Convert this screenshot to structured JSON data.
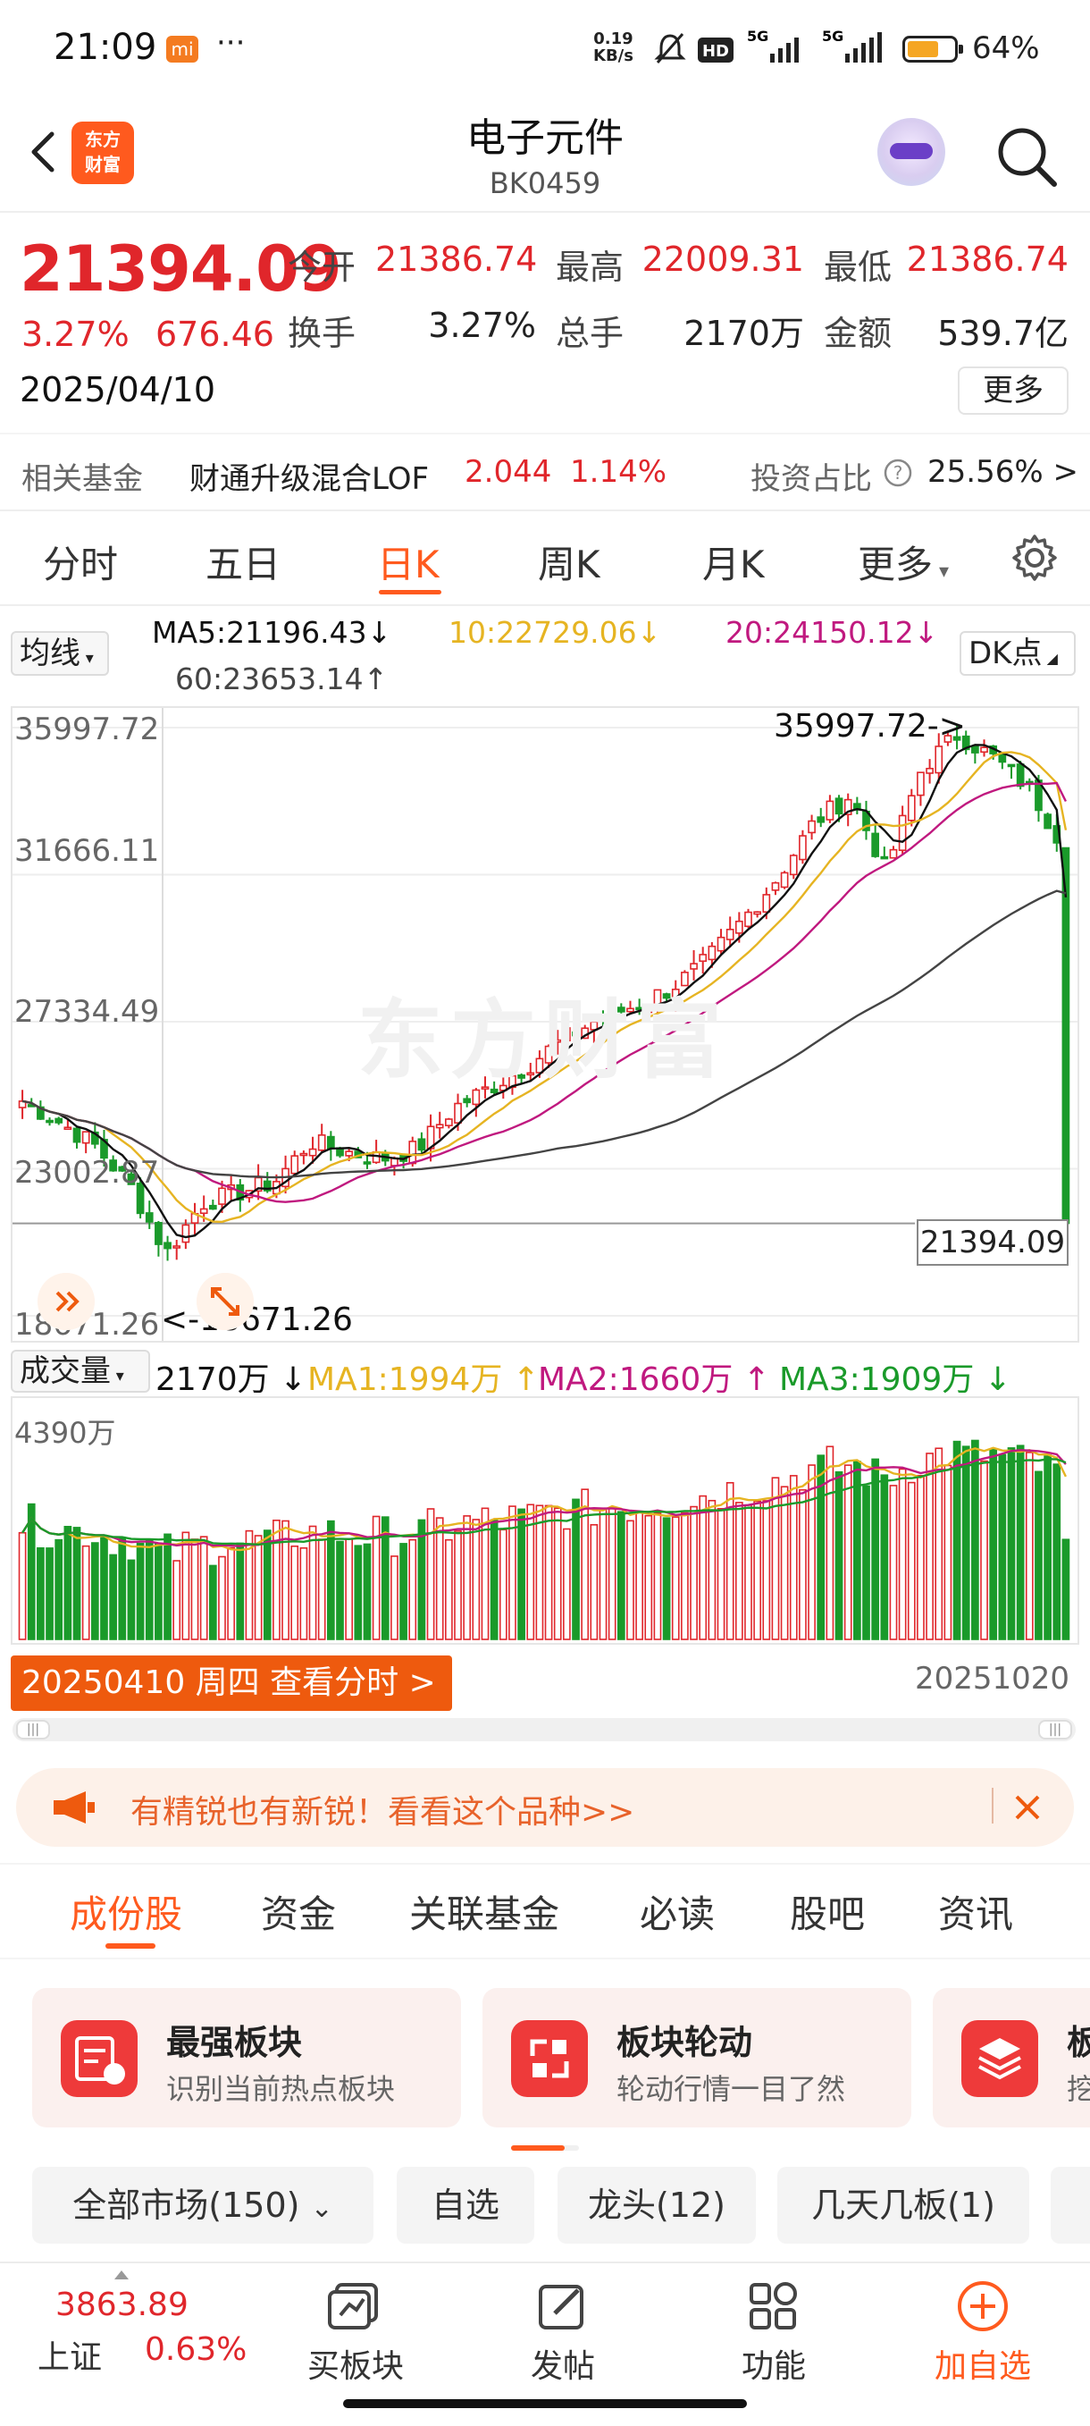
{
  "status_bar": {
    "time": "21:09",
    "mi": "mi",
    "more": "···",
    "net_speed_value": "0.19",
    "net_speed_unit": "KB/s",
    "battery": "64%"
  },
  "header": {
    "title": "电子元件",
    "code": "BK0459",
    "logo_line1": "东方",
    "logo_line2": "财富"
  },
  "quote": {
    "price": "21394.09",
    "pct": "3.27%",
    "change": "676.46",
    "date": "2025/04/10",
    "open_label": "今开",
    "open": "21386.74",
    "high_label": "最高",
    "high": "22009.31",
    "low_label": "最低",
    "low": "21386.74",
    "turnover_label": "换手",
    "turnover": "3.27%",
    "volume_label": "总手",
    "volume": "2170万",
    "amount_label": "金额",
    "amount": "539.7亿",
    "more": "更多"
  },
  "fund": {
    "label": "相关基金",
    "name": "财通升级混合LOF",
    "value": "2.044",
    "pct": "1.14%",
    "ratio_label": "投资占比",
    "ratio": "25.56% >"
  },
  "kline_tabs": [
    "分时",
    "五日",
    "日K",
    "周K",
    "月K",
    "更多"
  ],
  "ma": {
    "selector": "均线",
    "ma5": "MA5:21196.43↓",
    "ma10": "10:22729.06↓",
    "ma20": "20:24150.12↓",
    "ma60": "60:23653.14↑",
    "dk": "DK点"
  },
  "chart": {
    "price_axis": [
      "35997.72",
      "31666.11",
      "27334.49",
      "23002.87",
      "18671.26"
    ],
    "high_marker": "35997.72->",
    "low_marker": "<-18671.26",
    "current": "21394.09",
    "watermark": "东方财富"
  },
  "chart_data": {
    "type": "candlestick",
    "title": "",
    "ylim": [
      18671.26,
      35997.72
    ],
    "y_ticks": [
      35997.72,
      31666.11,
      27334.49,
      23002.87,
      18671.26
    ],
    "high": 35997.72,
    "low": 18671.26,
    "last": 21394.09,
    "start_date": "20250410",
    "end_date": "20251020",
    "approx_close_trend": [
      25000,
      24400,
      23700,
      22500,
      20500,
      22000,
      22300,
      22600,
      23800,
      23500,
      23300,
      23600,
      24800,
      25400,
      26000,
      26800,
      27400,
      27800,
      28300,
      29100,
      30300,
      31600,
      33200,
      34000,
      31800,
      34800,
      35800,
      35100,
      34200,
      32400
    ],
    "series": [
      {
        "name": "MA5",
        "value": "21196.43",
        "color": "#111111"
      },
      {
        "name": "MA10",
        "value": "22729.06",
        "color": "#e6b422"
      },
      {
        "name": "MA20",
        "value": "24150.12",
        "color": "#c0197f"
      },
      {
        "name": "MA60",
        "value": "23653.14",
        "color": "#444444"
      }
    ]
  },
  "volume": {
    "selector": "成交量",
    "value": "2170万 ↓",
    "ma1": "MA1:1994万 ↑",
    "ma2": "MA2:1660万 ↑",
    "ma3": "MA3:1909万 ↓",
    "axis_top": "4390万",
    "date_button": "20250410 周四 查看分时 >",
    "end_date": "20251020"
  },
  "banner": {
    "text": "有精锐也有新锐！看看这个品种>>"
  },
  "section_tabs": [
    "成份股",
    "资金",
    "关联基金",
    "必读",
    "股吧",
    "资讯"
  ],
  "cards": [
    {
      "title": "最强板块",
      "sub": "识别当前热点板块"
    },
    {
      "title": "板块轮动",
      "sub": "轮动行情一目了然"
    },
    {
      "title": "板",
      "sub": "挖"
    }
  ],
  "filters": [
    "全部市场(150)",
    "自选",
    "龙头(12)",
    "几天几板(1)"
  ],
  "bottom_nav": {
    "index_value": "3863.89",
    "index_name": "上证",
    "index_pct": "0.63%",
    "items": [
      "买板块",
      "发帖",
      "功能",
      "加自选"
    ]
  },
  "colors": {
    "accent": "#ff5a1e",
    "up": "#e0262b",
    "down": "#1a9a2a",
    "ma10": "#e6b422",
    "ma20": "#c0197f",
    "ma3": "#1a9a2a"
  }
}
